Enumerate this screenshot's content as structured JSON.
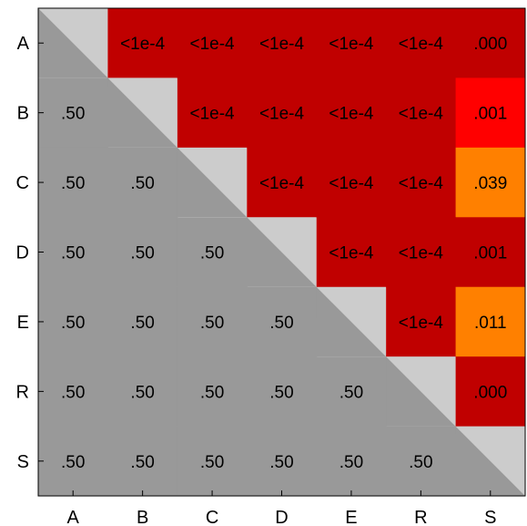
{
  "chart_data": {
    "type": "heatmap",
    "title": "",
    "xlabel": "",
    "ylabel": "",
    "row_labels": [
      "A",
      "B",
      "C",
      "D",
      "E",
      "R",
      "S"
    ],
    "col_labels": [
      "A",
      "B",
      "C",
      "D",
      "E",
      "R",
      "S"
    ],
    "cells": [
      [
        "",
        "<1e-4",
        "<1e-4",
        "<1e-4",
        "<1e-4",
        "<1e-4",
        ".000"
      ],
      [
        ".50",
        "",
        "<1e-4",
        "<1e-4",
        "<1e-4",
        "<1e-4",
        ".001"
      ],
      [
        ".50",
        ".50",
        "",
        "<1e-4",
        "<1e-4",
        "<1e-4",
        ".039"
      ],
      [
        ".50",
        ".50",
        ".50",
        "",
        "<1e-4",
        "<1e-4",
        ".001"
      ],
      [
        ".50",
        ".50",
        ".50",
        ".50",
        "",
        "<1e-4",
        ".011"
      ],
      [
        ".50",
        ".50",
        ".50",
        ".50",
        ".50",
        "",
        ".000"
      ],
      [
        ".50",
        ".50",
        ".50",
        ".50",
        ".50",
        ".50",
        ""
      ]
    ],
    "cell_colors": [
      [
        null,
        "dark-red",
        "dark-red",
        "dark-red",
        "dark-red",
        "dark-red",
        "dark-red"
      ],
      [
        "gray",
        null,
        "dark-red",
        "dark-red",
        "dark-red",
        "dark-red",
        "red"
      ],
      [
        "gray",
        "gray",
        null,
        "dark-red",
        "dark-red",
        "dark-red",
        "orange"
      ],
      [
        "gray",
        "gray",
        "gray",
        null,
        "dark-red",
        "dark-red",
        "dark-red"
      ],
      [
        "gray",
        "gray",
        "gray",
        "gray",
        null,
        "dark-red",
        "orange"
      ],
      [
        "gray",
        "gray",
        "gray",
        "gray",
        "gray",
        null,
        "dark-red"
      ],
      [
        "gray",
        "gray",
        "gray",
        "gray",
        "gray",
        "gray",
        null
      ]
    ],
    "colors": {
      "dark-red": "#c00000",
      "red": "#ff0000",
      "orange": "#ff8000",
      "gray": "#999999",
      "diagonal_light": "#cccccc",
      "diagonal_dark": "#999999"
    },
    "grid": false,
    "legend": "none"
  }
}
